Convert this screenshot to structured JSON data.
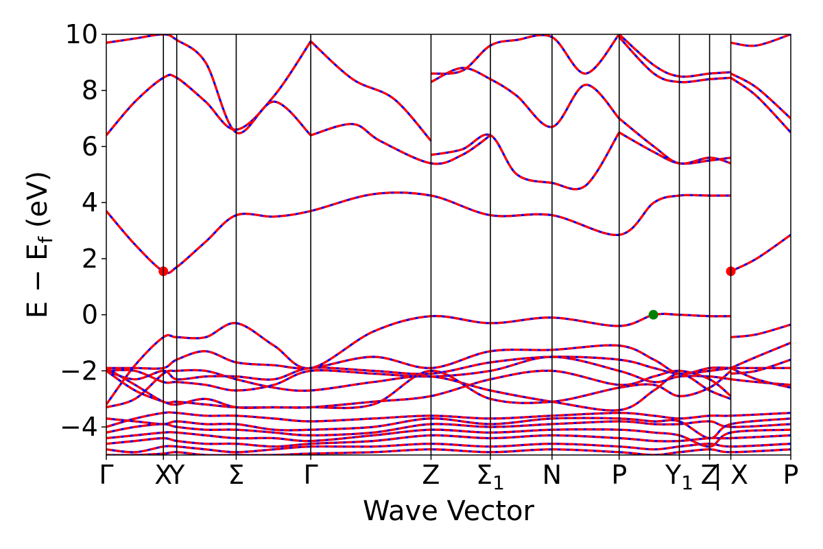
{
  "chart_data": {
    "type": "line",
    "title": "",
    "xlabel": "Wave Vector",
    "ylabel_main": "E − E",
    "ylabel_sub": "f",
    "ylabel_unit": " (eV)",
    "ylim": [
      -5,
      10
    ],
    "yticks": [
      10,
      8,
      6,
      4,
      2,
      0,
      -2,
      -4
    ],
    "ytick_labels": [
      "10",
      "8",
      "6",
      "4",
      "2",
      "0",
      "−2",
      "−4"
    ],
    "xlim": [
      0,
      1
    ],
    "kpoints": [
      {
        "label": "Γ",
        "x": 0.0
      },
      {
        "label": "X",
        "x": 0.0834
      },
      {
        "label": "Y",
        "x": 0.1029
      },
      {
        "label": "Σ",
        "x": 0.1898
      },
      {
        "label": "Γ",
        "x": 0.2987
      },
      {
        "label": "Z",
        "x": 0.4744
      },
      {
        "label": "Σ",
        "sub": "1",
        "x": 0.5612
      },
      {
        "label": "N",
        "x": 0.6512
      },
      {
        "label": "P",
        "x": 0.7493
      },
      {
        "label": "Y",
        "sub": "1",
        "x": 0.8372
      },
      {
        "label": "Z",
        "x": 0.8814
      },
      {
        "label": "| X",
        "x": 0.9124
      },
      {
        "label": "P",
        "x": 1.0
      }
    ],
    "colors": {
      "band": "#ff0000",
      "dash": "#0000ff",
      "cbm": "#ff0000",
      "vbm": "#008000"
    },
    "series": [
      {
        "x": [
          0,
          0.042,
          0.0834,
          0.1029,
          0.145,
          0.1898,
          0.245,
          0.2987
        ],
        "y": [
          6.4,
          7.6,
          8.45,
          8.45,
          7.6,
          6.6,
          7.8,
          9.75
        ]
      },
      {
        "x": [
          0.2987,
          0.36,
          0.42,
          0.4744
        ],
        "y": [
          9.75,
          8.4,
          7.7,
          6.2
        ]
      },
      {
        "x": [
          0.0,
          0.042,
          0.0834,
          0.1029,
          0.145,
          0.1898,
          0.245,
          0.2987
        ],
        "y": [
          9.7,
          9.85,
          10.0,
          9.8,
          9.0,
          6.5,
          7.6,
          6.4
        ]
      },
      {
        "x": [
          0.2987,
          0.36,
          0.4,
          0.4744,
          0.52,
          0.5612
        ],
        "y": [
          6.4,
          6.8,
          6.2,
          5.4,
          5.7,
          6.4
        ]
      },
      {
        "x": [
          0.4744,
          0.52,
          0.5612,
          0.6,
          0.6512,
          0.7,
          0.7493
        ],
        "y": [
          5.7,
          5.9,
          6.4,
          5.0,
          4.7,
          4.6,
          6.5
        ]
      },
      {
        "x": [
          0.7493,
          0.8,
          0.8372,
          0.8814,
          0.9124
        ],
        "y": [
          6.5,
          5.8,
          5.4,
          5.5,
          5.6
        ]
      },
      {
        "x": [
          0.7493,
          0.8,
          0.8372,
          0.8814,
          0.9124
        ],
        "y": [
          7.0,
          6.0,
          5.4,
          5.6,
          5.4
        ]
      },
      {
        "x": [
          0.4744,
          0.52,
          0.5612,
          0.6,
          0.6512,
          0.7,
          0.7493
        ],
        "y": [
          8.6,
          8.7,
          9.6,
          9.8,
          9.9,
          8.6,
          10.0
        ]
      },
      {
        "x": [
          0.4744,
          0.52,
          0.5612,
          0.6,
          0.6512,
          0.7,
          0.7493
        ],
        "y": [
          8.3,
          8.8,
          8.4,
          7.8,
          6.7,
          8.2,
          7.0
        ]
      },
      {
        "x": [
          0.7493,
          0.8,
          0.8372,
          0.8814,
          0.9124
        ],
        "y": [
          10.0,
          8.9,
          8.5,
          8.6,
          8.65
        ]
      },
      {
        "x": [
          0.7493,
          0.8,
          0.8372,
          0.8814,
          0.9124
        ],
        "y": [
          9.9,
          8.6,
          8.3,
          8.4,
          8.45
        ]
      },
      {
        "x": [
          0.9124,
          0.95,
          1.0
        ],
        "y": [
          8.45,
          7.8,
          6.5
        ]
      },
      {
        "x": [
          0.9124,
          0.95,
          1.0
        ],
        "y": [
          9.7,
          9.6,
          10.0
        ]
      },
      {
        "x": [
          0.9124,
          0.95,
          1.0
        ],
        "y": [
          8.6,
          8.1,
          7.0
        ]
      },
      {
        "x": [
          0.0,
          0.042,
          0.0834,
          0.1029,
          0.145,
          0.1898,
          0.245,
          0.2987,
          0.39,
          0.4744,
          0.5612,
          0.6512,
          0.7493,
          0.8,
          0.8372,
          0.8814,
          0.9124
        ],
        "y": [
          3.7,
          2.5,
          1.55,
          1.7,
          2.6,
          3.55,
          3.5,
          3.7,
          4.3,
          4.25,
          3.55,
          3.55,
          2.85,
          4.0,
          4.25,
          4.25,
          4.25
        ]
      },
      {
        "x": [
          0.9124,
          0.95,
          1.0
        ],
        "y": [
          1.55,
          2.0,
          2.85
        ]
      },
      {
        "x": [
          0.0,
          0.042,
          0.0834,
          0.1029,
          0.145,
          0.1898,
          0.245,
          0.2987,
          0.39,
          0.4744,
          0.5612,
          0.6512,
          0.7493,
          0.8,
          0.8372,
          0.8814,
          0.9124
        ],
        "y": [
          -3.2,
          -1.8,
          -0.8,
          -0.8,
          -0.8,
          -0.3,
          -1.1,
          -1.9,
          -0.6,
          -0.05,
          -0.3,
          -0.1,
          -0.4,
          0.0,
          0.0,
          -0.05,
          -0.05
        ]
      },
      {
        "x": [
          0.9124,
          0.95,
          1.0
        ],
        "y": [
          -0.8,
          -0.7,
          -0.35
        ]
      },
      {
        "x": [
          0.0,
          0.042,
          0.0834,
          0.1029,
          0.145,
          0.1898,
          0.245,
          0.2987,
          0.39,
          0.4744,
          0.5612,
          0.6512,
          0.7493,
          0.8,
          0.8372,
          0.8814,
          0.9124
        ],
        "y": [
          -1.9,
          -1.9,
          -1.9,
          -1.6,
          -1.3,
          -1.7,
          -1.8,
          -1.9,
          -1.5,
          -1.9,
          -1.3,
          -1.25,
          -1.1,
          -1.6,
          -2.1,
          -1.9,
          -1.9
        ]
      },
      {
        "x": [
          0.9124,
          0.95,
          1.0
        ],
        "y": [
          -1.9,
          -1.5,
          -1.0
        ]
      },
      {
        "x": [
          0.0,
          0.042,
          0.0834,
          0.1029,
          0.145,
          0.1898,
          0.245,
          0.2987,
          0.39,
          0.4744,
          0.5612,
          0.6512,
          0.7493,
          0.8,
          0.8372,
          0.8814,
          0.9124
        ],
        "y": [
          -2.0,
          -2.3,
          -2.0,
          -2.3,
          -2.2,
          -2.2,
          -2.3,
          -1.9,
          -2.0,
          -2.1,
          -1.7,
          -1.5,
          -1.6,
          -1.9,
          -2.1,
          -2.0,
          -1.9
        ]
      },
      {
        "x": [
          0.0,
          0.042,
          0.0834,
          0.1029,
          0.145,
          0.1898,
          0.245,
          0.2987,
          0.39,
          0.4744,
          0.5612,
          0.6512,
          0.7493,
          0.8,
          0.8372,
          0.8814,
          0.9124
        ],
        "y": [
          -2.0,
          -2.0,
          -2.4,
          -2.4,
          -2.5,
          -2.7,
          -2.5,
          -2.0,
          -2.1,
          -2.2,
          -2.0,
          -1.5,
          -2.0,
          -2.4,
          -2.2,
          -2.2,
          -2.3
        ]
      },
      {
        "x": [
          0.0,
          0.042,
          0.0834,
          0.1029,
          0.145,
          0.1898,
          0.245,
          0.2987,
          0.39,
          0.4744,
          0.5612,
          0.6512,
          0.7493,
          0.8,
          0.8372,
          0.8814,
          0.9124
        ],
        "y": [
          -1.9,
          -2.5,
          -3.1,
          -3.1,
          -3.2,
          -3.3,
          -3.3,
          -3.3,
          -3.1,
          -2.9,
          -2.3,
          -2.0,
          -2.5,
          -2.2,
          -2.0,
          -2.3,
          -2.9
        ]
      },
      {
        "x": [
          0.0,
          0.042,
          0.0834,
          0.1029,
          0.145,
          0.1898,
          0.245,
          0.2987,
          0.39,
          0.4744,
          0.5612,
          0.6512,
          0.7493,
          0.8,
          0.8372,
          0.8814,
          0.9124
        ],
        "y": [
          -3.3,
          -3.0,
          -2.1,
          -2.0,
          -2.0,
          -2.3,
          -2.6,
          -2.7,
          -2.4,
          -2.2,
          -2.7,
          -3.1,
          -3.4,
          -2.7,
          -2.1,
          -2.7,
          -3.0
        ]
      },
      {
        "x": [
          0.0,
          0.042,
          0.0834,
          0.1029,
          0.145,
          0.1898,
          0.245,
          0.2987,
          0.39,
          0.4744,
          0.5612,
          0.6512,
          0.7493,
          0.8,
          0.8372,
          0.8814,
          0.9124
        ],
        "y": [
          -2.0,
          -2.7,
          -3.1,
          -3.2,
          -3.0,
          -3.3,
          -3.3,
          -3.3,
          -3.2,
          -2.0,
          -3.0,
          -3.1,
          -2.6,
          -2.5,
          -2.9,
          -2.6,
          -2.0
        ]
      },
      {
        "x": [
          0.9124,
          0.95,
          1.0
        ],
        "y": [
          -1.9,
          -1.9,
          -1.9
        ]
      },
      {
        "x": [
          0.9124,
          0.95,
          1.0
        ],
        "y": [
          -2.3,
          -2.4,
          -2.5
        ]
      },
      {
        "x": [
          0.9124,
          0.95,
          1.0
        ],
        "y": [
          -2.1,
          -2.0,
          -1.6
        ]
      },
      {
        "x": [
          0.9124,
          0.95,
          1.0
        ],
        "y": [
          -1.9,
          -2.3,
          -2.6
        ]
      },
      {
        "x": [
          0.0,
          0.042,
          0.0834,
          0.1029,
          0.145,
          0.1898,
          0.245,
          0.2987,
          0.39,
          0.4744,
          0.5612,
          0.6512,
          0.7493,
          0.8,
          0.8372,
          0.8814,
          0.9124,
          1.0
        ],
        "y": [
          -4.0,
          -3.7,
          -3.5,
          -3.5,
          -3.6,
          -3.6,
          -3.7,
          -3.8,
          -3.7,
          -3.6,
          -3.7,
          -3.6,
          -3.5,
          -3.6,
          -3.7,
          -3.6,
          -3.6,
          -3.5
        ]
      },
      {
        "x": [
          0.0,
          0.042,
          0.0834,
          0.1029,
          0.145,
          0.1898,
          0.245,
          0.2987,
          0.39,
          0.4744,
          0.5612,
          0.6512,
          0.7493,
          0.8,
          0.8372,
          0.8814,
          0.9124,
          1.0
        ],
        "y": [
          -3.7,
          -3.8,
          -3.9,
          -3.8,
          -3.9,
          -3.9,
          -4.1,
          -4.1,
          -4.0,
          -3.7,
          -3.9,
          -3.7,
          -3.7,
          -3.8,
          -3.8,
          -4.4,
          -3.9,
          -3.7
        ]
      },
      {
        "x": [
          0.0,
          0.042,
          0.0834,
          0.1029,
          0.145,
          0.1898,
          0.245,
          0.2987,
          0.39,
          0.4744,
          0.5612,
          0.6512,
          0.7493,
          0.8,
          0.8372,
          0.8814,
          0.9124,
          1.0
        ],
        "y": [
          -4.2,
          -4.0,
          -3.9,
          -4.0,
          -4.1,
          -4.1,
          -4.2,
          -4.3,
          -4.2,
          -3.9,
          -4.0,
          -3.9,
          -3.8,
          -3.9,
          -3.9,
          -3.8,
          -4.0,
          -3.9
        ]
      },
      {
        "x": [
          0.0,
          0.042,
          0.0834,
          0.1029,
          0.145,
          0.1898,
          0.245,
          0.2987,
          0.39,
          0.4744,
          0.5612,
          0.6512,
          0.7493,
          0.8,
          0.8372,
          0.8814,
          0.9124,
          1.0
        ],
        "y": [
          -4.4,
          -4.3,
          -4.2,
          -4.2,
          -4.3,
          -4.4,
          -4.4,
          -4.5,
          -4.3,
          -4.1,
          -4.2,
          -4.1,
          -4.1,
          -4.2,
          -4.3,
          -4.7,
          -4.2,
          -4.1
        ]
      },
      {
        "x": [
          0.0,
          0.042,
          0.0834,
          0.1029,
          0.145,
          0.1898,
          0.245,
          0.2987,
          0.39,
          0.4744,
          0.5612,
          0.6512,
          0.7493,
          0.8,
          0.8372,
          0.8814,
          0.9124,
          1.0
        ],
        "y": [
          -4.6,
          -4.5,
          -4.4,
          -4.5,
          -4.6,
          -4.6,
          -4.7,
          -4.6,
          -4.5,
          -4.3,
          -4.4,
          -4.3,
          -4.4,
          -4.5,
          -4.5,
          -4.4,
          -4.4,
          -4.3
        ]
      },
      {
        "x": [
          0.0,
          0.042,
          0.0834,
          0.1029,
          0.145,
          0.1898,
          0.245,
          0.2987,
          0.39,
          0.4744,
          0.5612,
          0.6512,
          0.7493,
          0.8,
          0.8372,
          0.8814,
          0.9124,
          1.0
        ],
        "y": [
          -4.8,
          -4.9,
          -4.7,
          -4.7,
          -4.8,
          -4.9,
          -4.8,
          -4.7,
          -4.7,
          -4.6,
          -4.7,
          -4.6,
          -4.7,
          -4.8,
          -4.7,
          -4.6,
          -4.7,
          -4.6
        ]
      },
      {
        "x": [
          0.0,
          0.042,
          0.0834,
          0.1029,
          0.145,
          0.1898,
          0.245,
          0.2987,
          0.39,
          0.4744,
          0.5612,
          0.6512,
          0.7493,
          0.8,
          0.8372,
          0.8814,
          0.9124,
          1.0
        ],
        "y": [
          -5.0,
          -5.0,
          -4.95,
          -4.9,
          -5.0,
          -5.0,
          -5.0,
          -4.95,
          -4.9,
          -4.8,
          -4.9,
          -4.8,
          -4.9,
          -5.0,
          -4.9,
          -4.8,
          -4.9,
          -4.8
        ]
      }
    ],
    "markers": [
      {
        "x": 0.0834,
        "y": 1.55,
        "color": "#ff0000"
      },
      {
        "x": 0.9124,
        "y": 1.55,
        "color": "#ff0000"
      },
      {
        "x": 0.7993,
        "y": 0.0,
        "color": "#008000"
      }
    ]
  }
}
